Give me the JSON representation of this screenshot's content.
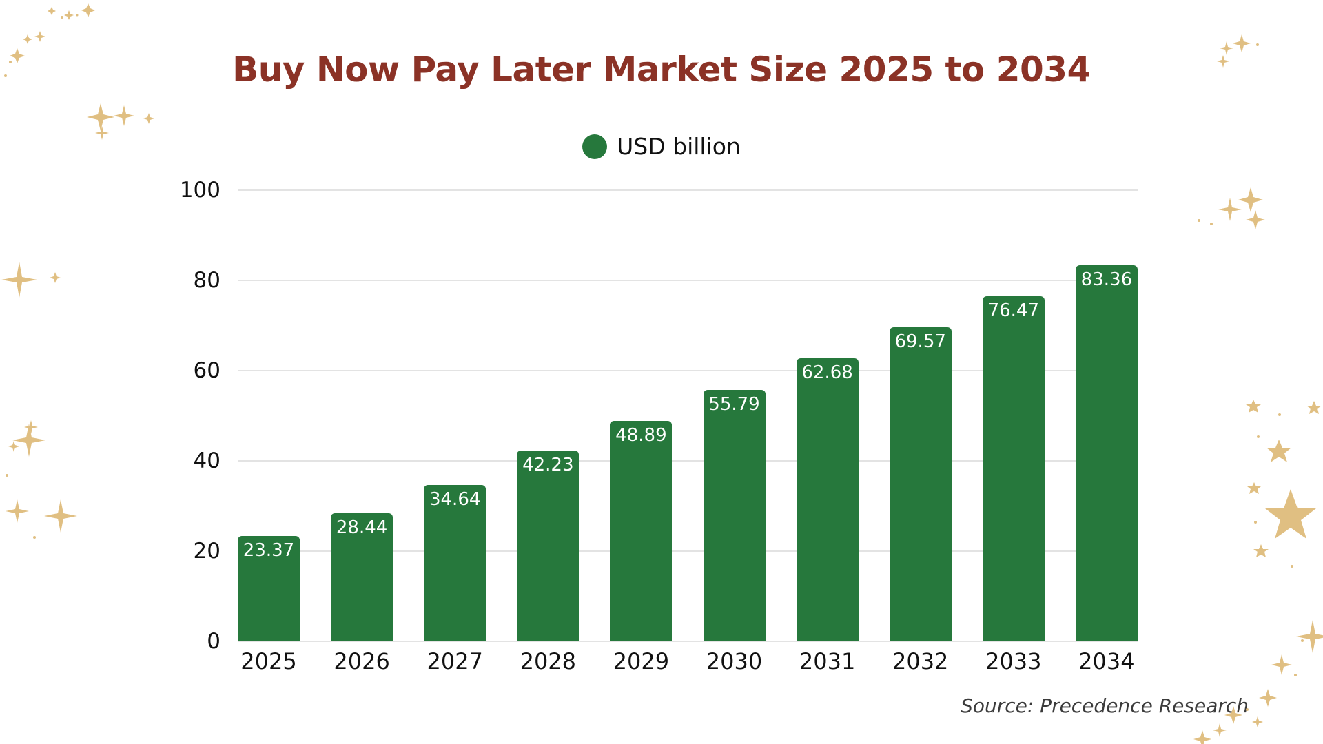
{
  "colors": {
    "title": "#8B3226",
    "bar": "#26783C",
    "bar_label": "#FFFFFF",
    "gridline": "#E3E3E3",
    "decoration": "#E0BF82"
  },
  "chart_data": {
    "type": "bar",
    "title": "Buy Now Pay Later Market Size 2025 to 2034",
    "categories": [
      "2025",
      "2026",
      "2027",
      "2028",
      "2029",
      "2030",
      "2031",
      "2032",
      "2033",
      "2034"
    ],
    "series": [
      {
        "name": "USD billion",
        "values": [
          23.37,
          28.44,
          34.64,
          42.23,
          48.89,
          55.79,
          62.68,
          69.57,
          76.47,
          83.36
        ]
      }
    ],
    "value_labels": [
      "23.37",
      "28.44",
      "34.64",
      "42.23",
      "48.89",
      "55.79",
      "62.68",
      "69.57",
      "76.47",
      "83.36"
    ],
    "xlabel": "",
    "ylabel": "",
    "ylim": [
      0,
      100
    ],
    "yticks": [
      "0",
      "20",
      "40",
      "60",
      "80",
      "100"
    ],
    "grid": true,
    "legend_position": "top-center",
    "source": "Source: Precedence Research"
  },
  "header": {
    "title": "Buy Now Pay Later Market Size 2025 to 2034"
  },
  "legend": {
    "label": "USD billion"
  },
  "footer": {
    "source": "Source: Precedence Research"
  }
}
